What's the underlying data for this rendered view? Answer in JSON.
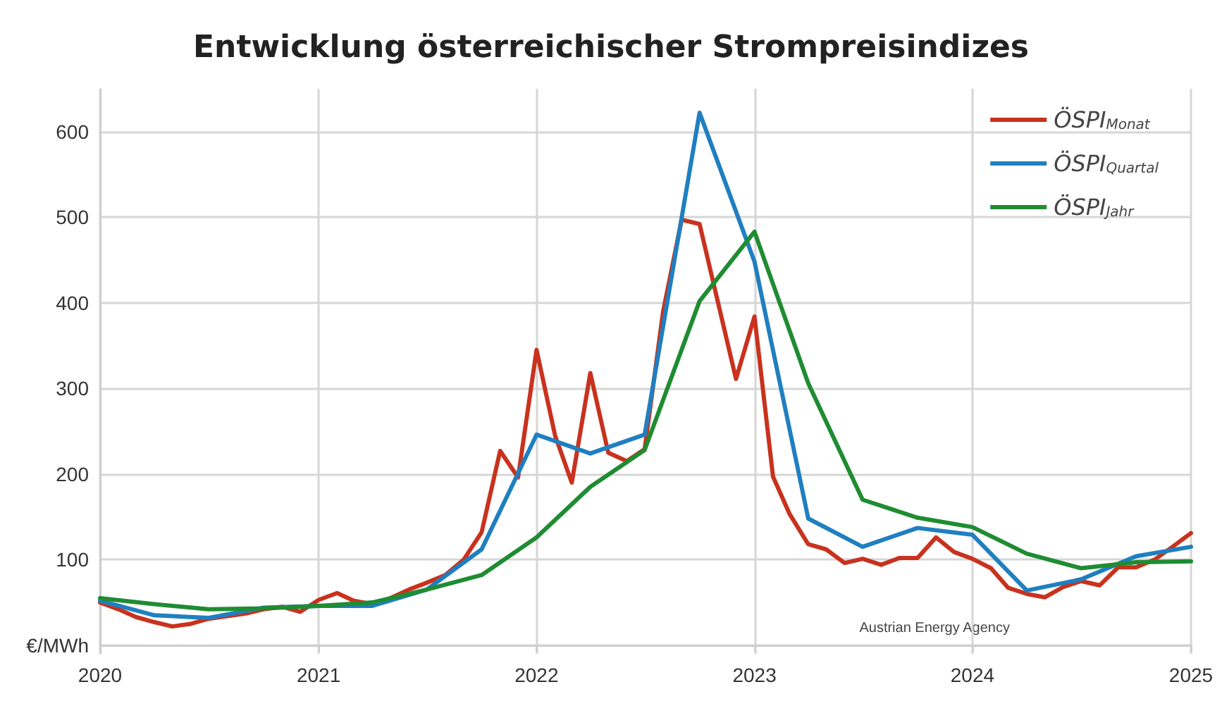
{
  "chart_data": {
    "type": "line",
    "title": "Entwicklung österreichischer Strompreisindizes",
    "annotations": [
      "Austrian Energy Agency"
    ],
    "xlim": [
      "2020-01",
      "2025-01"
    ],
    "xticks": [
      "2020",
      "2021",
      "2022",
      "2023",
      "2024",
      "2025"
    ],
    "ylim": [
      -10,
      650
    ],
    "yticks": [
      {
        "value": 0,
        "label": "€/MWh"
      },
      100,
      200,
      300,
      400,
      500,
      600
    ],
    "grid": true,
    "legend": "top right",
    "marker": "none",
    "line_style": "solid",
    "series": [
      {
        "name": "ÖSPI$_{Monat}$",
        "color": "#c8321e",
        "x": [
          "2020-01",
          "2020-02",
          "2020-03",
          "2020-04",
          "2020-05",
          "2020-06",
          "2020-07",
          "2020-08",
          "2020-09",
          "2020-10",
          "2020-11",
          "2020-12",
          "2021-01",
          "2021-02",
          "2021-03",
          "2021-04",
          "2021-05",
          "2021-06",
          "2021-07",
          "2021-08",
          "2021-09",
          "2021-10",
          "2021-11",
          "2021-12",
          "2022-01",
          "2022-02",
          "2022-03",
          "2022-04",
          "2022-05",
          "2022-06",
          "2022-07",
          "2022-08",
          "2022-09",
          "2022-10",
          "2022-11",
          "2022-12",
          "2023-01",
          "2023-02",
          "2023-03",
          "2023-04",
          "2023-05",
          "2023-06",
          "2023-07",
          "2023-08",
          "2023-09",
          "2023-10",
          "2023-11",
          "2023-12",
          "2024-01",
          "2024-02",
          "2024-03",
          "2024-04",
          "2024-05",
          "2024-06",
          "2024-07",
          "2024-08",
          "2024-09",
          "2024-10",
          "2024-11",
          "2024-12",
          "2025-01"
        ],
        "values": [
          50,
          42,
          33,
          27,
          22,
          25,
          31,
          34,
          37,
          42,
          45,
          39,
          53,
          61,
          52,
          48,
          55,
          65,
          73,
          82,
          100,
          132,
          227,
          196,
          345,
          245,
          190,
          318,
          225,
          215,
          229,
          390,
          497,
          492,
          400,
          311,
          384,
          197,
          153,
          118,
          112,
          96,
          101,
          94,
          102,
          102,
          126,
          109,
          101,
          90,
          67,
          60,
          56,
          68,
          75,
          70,
          91,
          91,
          100,
          115,
          131
        ]
      },
      {
        "name": "ÖSPI$_{Quartal}$",
        "color": "#1f7fc0",
        "x": [
          "2020-01",
          "2020-04",
          "2020-07",
          "2020-10",
          "2021-01",
          "2021-04",
          "2021-07",
          "2021-10",
          "2022-01",
          "2022-04",
          "2022-07",
          "2022-10",
          "2023-01",
          "2023-04",
          "2023-07",
          "2023-10",
          "2024-01",
          "2024-04",
          "2024-07",
          "2024-10",
          "2025-01"
        ],
        "values": [
          52,
          35,
          32,
          44,
          46,
          46,
          65,
          112,
          246,
          224,
          246,
          622,
          448,
          148,
          115,
          137,
          129,
          64,
          77,
          104,
          115
        ]
      },
      {
        "name": "ÖSPI$_{Jahr}$",
        "color": "#1f8c32",
        "x": [
          "2020-01",
          "2020-04",
          "2020-07",
          "2020-10",
          "2021-01",
          "2021-04",
          "2021-07",
          "2021-10",
          "2022-01",
          "2022-04",
          "2022-07",
          "2022-10",
          "2023-01",
          "2023-04",
          "2023-07",
          "2023-10",
          "2024-01",
          "2024-04",
          "2024-07",
          "2024-10",
          "2025-01"
        ],
        "values": [
          55,
          48,
          42,
          43,
          46,
          50,
          65,
          82,
          126,
          185,
          228,
          402,
          483,
          306,
          170,
          149,
          138,
          107,
          90,
          97,
          98
        ]
      }
    ]
  }
}
